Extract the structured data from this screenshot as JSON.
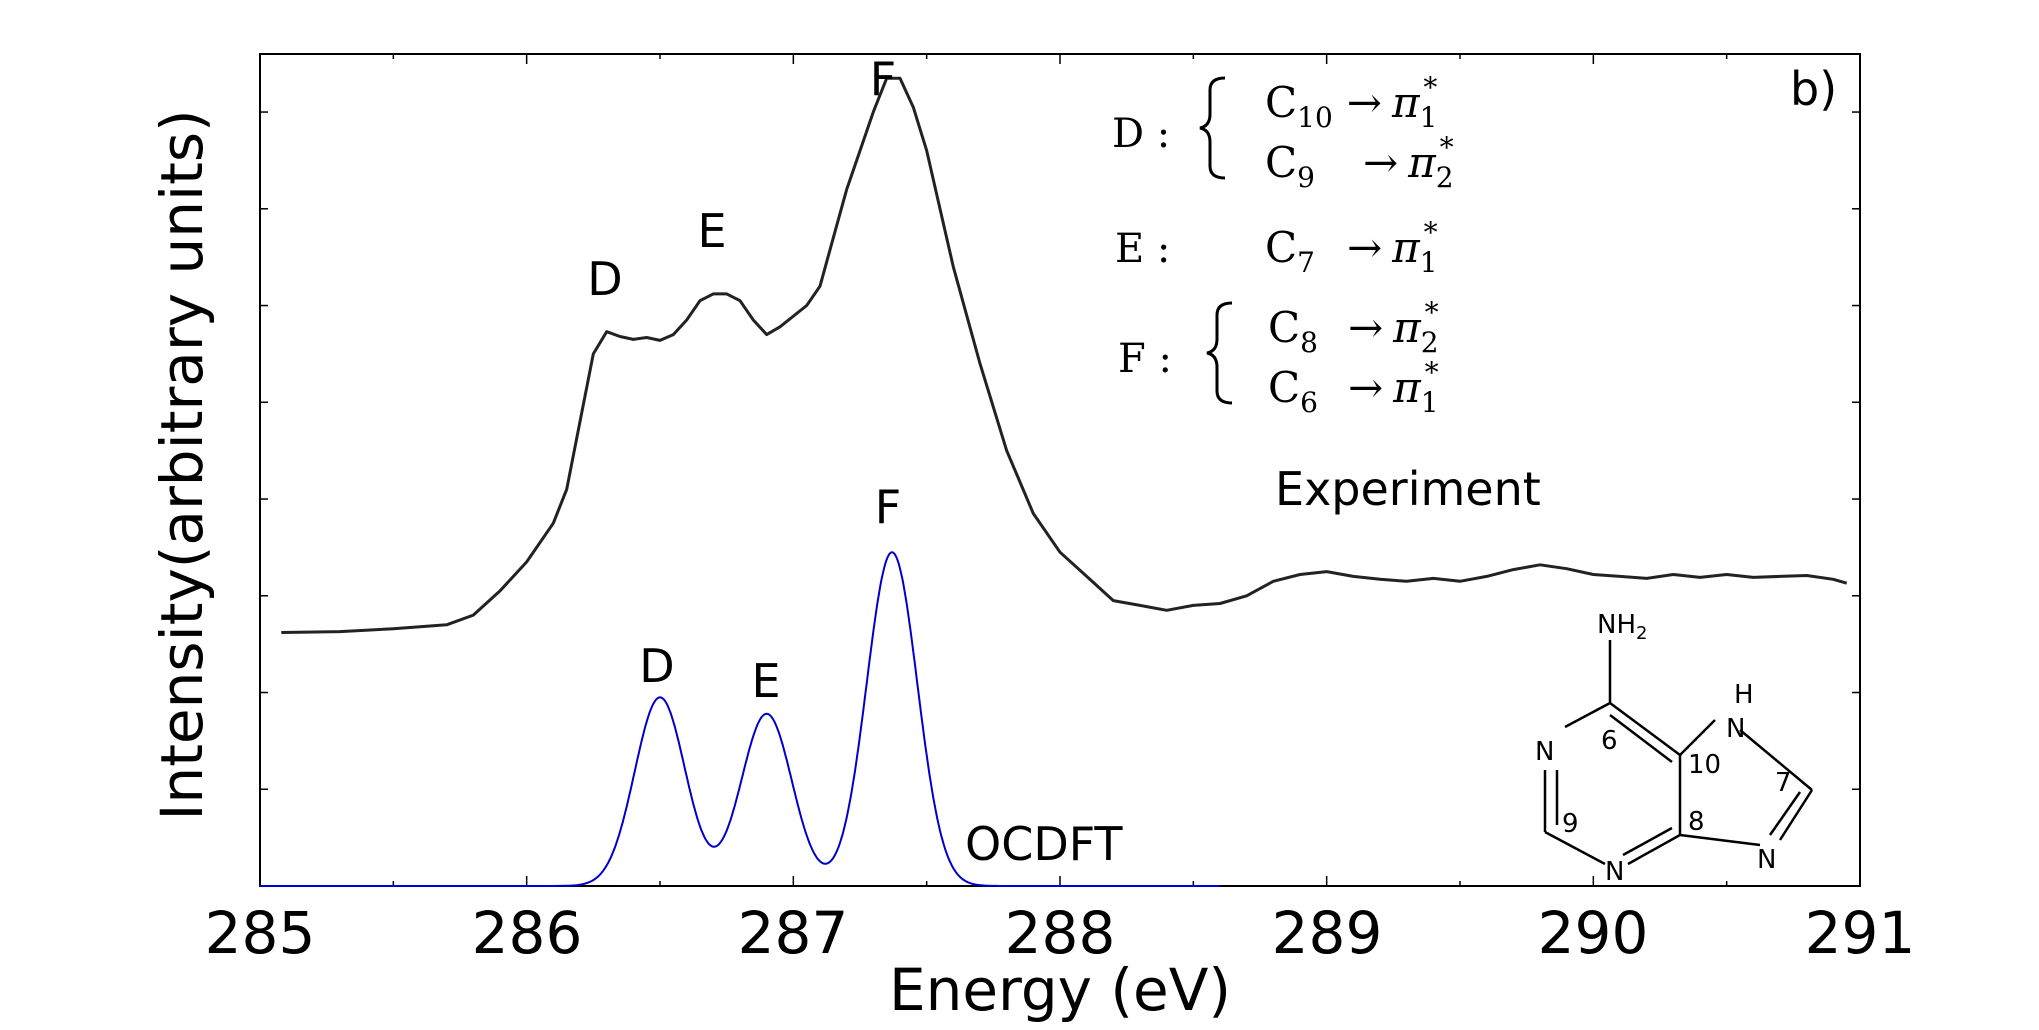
{
  "chart_data": {
    "type": "line",
    "panel_label": "b)",
    "xlabel": "Energy (eV)",
    "ylabel": "Intensity(arbitrary units)",
    "xlim": [
      285,
      291
    ],
    "ylim": [
      0,
      8.6
    ],
    "x_ticks": [
      "285",
      "286",
      "287",
      "288",
      "289",
      "290",
      "291"
    ],
    "y_ticks_count": 8,
    "series": [
      {
        "name": "Experiment",
        "color": "#222222",
        "points": [
          [
            285.08,
            2.62
          ],
          [
            285.3,
            2.63
          ],
          [
            285.5,
            2.66
          ],
          [
            285.7,
            2.7
          ],
          [
            285.8,
            2.8
          ],
          [
            285.9,
            3.05
          ],
          [
            286.0,
            3.35
          ],
          [
            286.1,
            3.75
          ],
          [
            286.15,
            4.1
          ],
          [
            286.2,
            4.8
          ],
          [
            286.25,
            5.5
          ],
          [
            286.3,
            5.73
          ],
          [
            286.35,
            5.68
          ],
          [
            286.4,
            5.65
          ],
          [
            286.45,
            5.67
          ],
          [
            286.5,
            5.64
          ],
          [
            286.55,
            5.7
          ],
          [
            286.6,
            5.85
          ],
          [
            286.65,
            6.05
          ],
          [
            286.7,
            6.12
          ],
          [
            286.75,
            6.12
          ],
          [
            286.8,
            6.05
          ],
          [
            286.85,
            5.85
          ],
          [
            286.9,
            5.7
          ],
          [
            286.95,
            5.78
          ],
          [
            287.05,
            6.0
          ],
          [
            287.1,
            6.2
          ],
          [
            287.15,
            6.7
          ],
          [
            287.2,
            7.2
          ],
          [
            287.25,
            7.6
          ],
          [
            287.3,
            8.0
          ],
          [
            287.35,
            8.35
          ],
          [
            287.4,
            8.35
          ],
          [
            287.45,
            8.05
          ],
          [
            287.5,
            7.6
          ],
          [
            287.55,
            7.0
          ],
          [
            287.6,
            6.4
          ],
          [
            287.7,
            5.4
          ],
          [
            287.8,
            4.5
          ],
          [
            287.9,
            3.85
          ],
          [
            288.0,
            3.45
          ],
          [
            288.1,
            3.2
          ],
          [
            288.2,
            2.95
          ],
          [
            288.3,
            2.9
          ],
          [
            288.4,
            2.85
          ],
          [
            288.5,
            2.9
          ],
          [
            288.6,
            2.92
          ],
          [
            288.7,
            3.0
          ],
          [
            288.8,
            3.15
          ],
          [
            288.9,
            3.22
          ],
          [
            289.0,
            3.25
          ],
          [
            289.1,
            3.2
          ],
          [
            289.2,
            3.17
          ],
          [
            289.3,
            3.15
          ],
          [
            289.4,
            3.18
          ],
          [
            289.5,
            3.15
          ],
          [
            289.6,
            3.2
          ],
          [
            289.7,
            3.27
          ],
          [
            289.8,
            3.32
          ],
          [
            289.9,
            3.28
          ],
          [
            290.0,
            3.22
          ],
          [
            290.1,
            3.2
          ],
          [
            290.2,
            3.18
          ],
          [
            290.3,
            3.22
          ],
          [
            290.4,
            3.19
          ],
          [
            290.5,
            3.22
          ],
          [
            290.6,
            3.19
          ],
          [
            290.7,
            3.2
          ],
          [
            290.8,
            3.21
          ],
          [
            290.9,
            3.17
          ],
          [
            290.95,
            3.13
          ]
        ],
        "peak_labels": [
          {
            "label": "D",
            "x": 286.3,
            "y": 5.73
          },
          {
            "label": "E",
            "x": 286.67,
            "y": 6.12
          },
          {
            "label": "F",
            "x": 287.33,
            "y": 8.35
          }
        ]
      },
      {
        "name": "OCDFT",
        "color": "#0000cc",
        "peaks": [
          {
            "center": 286.5,
            "height": 1.95,
            "sigma": 0.095
          },
          {
            "center": 286.9,
            "height": 1.78,
            "sigma": 0.095
          },
          {
            "center": 287.37,
            "height": 3.45,
            "sigma": 0.095
          }
        ],
        "peak_labels": [
          {
            "label": "D",
            "x": 286.5,
            "y": 1.95
          },
          {
            "label": "E",
            "x": 286.9,
            "y": 1.78
          },
          {
            "label": "F",
            "x": 287.37,
            "y": 3.45
          }
        ]
      }
    ],
    "series_labels": {
      "experiment": "Experiment",
      "ocdft": "OCDFT"
    },
    "assignments": [
      {
        "peak": "D :",
        "transitions": [
          {
            "base": "C",
            "sub": "10",
            "arrow": "→",
            "target": "π",
            "tsub": "1",
            "tsup": "*"
          },
          {
            "base": "C",
            "sub": "9",
            "arrow": "→",
            "target": "π",
            "tsub": "2",
            "tsup": "*"
          }
        ]
      },
      {
        "peak": "E :",
        "transitions": [
          {
            "base": "C",
            "sub": "7",
            "arrow": "→",
            "target": "π",
            "tsub": "1",
            "tsup": "*"
          }
        ]
      },
      {
        "peak": "F :",
        "transitions": [
          {
            "base": "C",
            "sub": "8",
            "arrow": "→",
            "target": "π",
            "tsub": "2",
            "tsup": "*"
          },
          {
            "base": "C",
            "sub": "6",
            "arrow": "→",
            "target": "π",
            "tsub": "1",
            "tsup": "*"
          }
        ]
      }
    ],
    "molecule": {
      "atoms": {
        "nh2": "NH",
        "nh2_sub": "2",
        "h": "H",
        "n": "N"
      },
      "numbers": [
        "6",
        "10",
        "7",
        "9",
        "8"
      ]
    }
  }
}
